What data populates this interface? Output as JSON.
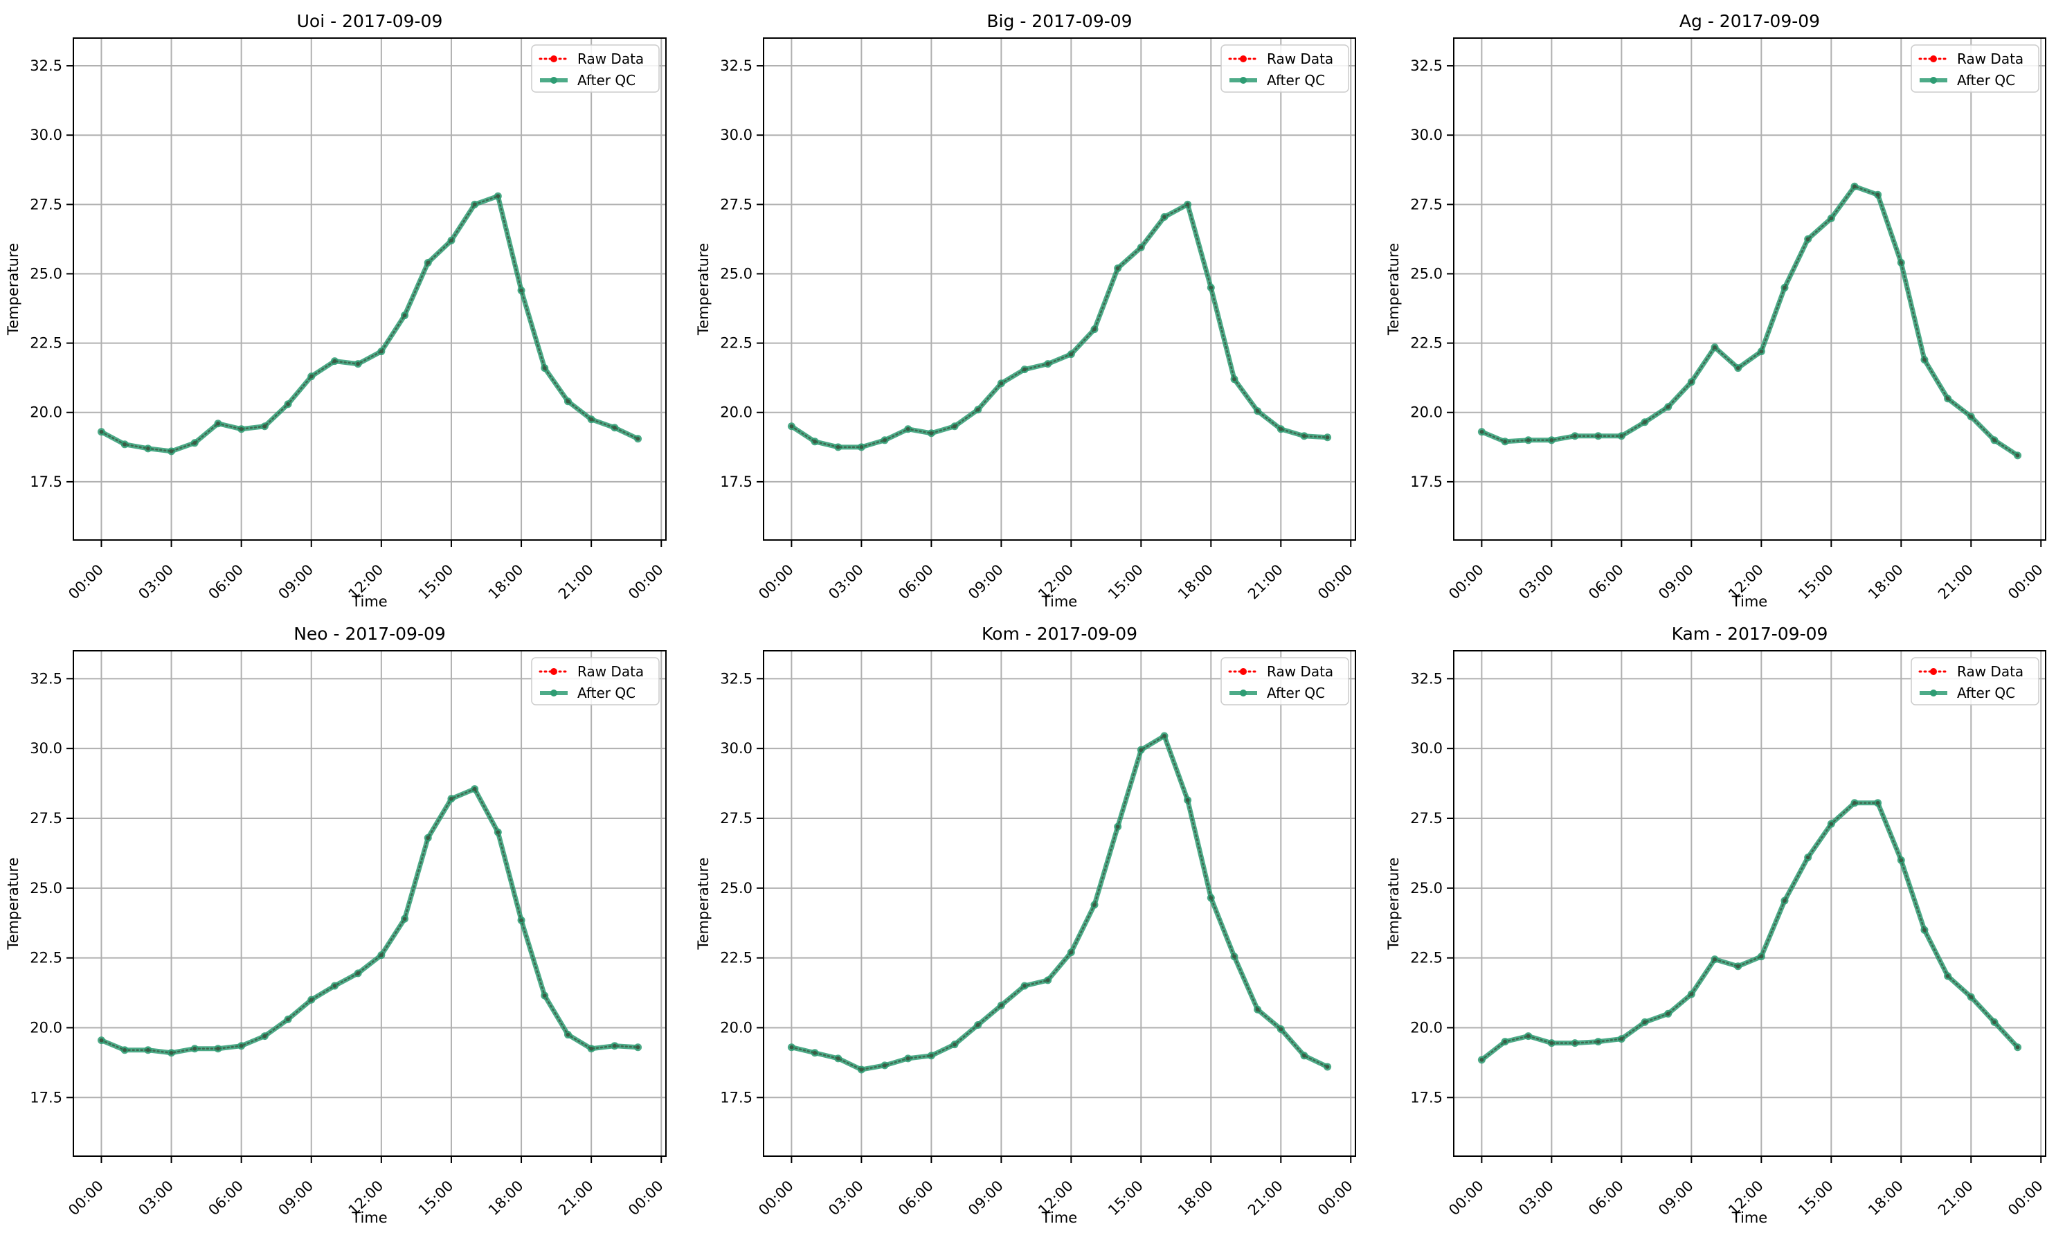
{
  "chart_data": [
    {
      "type": "line",
      "title": "Uoi - 2017-09-09",
      "xlabel": "Time",
      "ylabel": "Temperature",
      "x_ticks": [
        "00:00",
        "03:00",
        "06:00",
        "09:00",
        "12:00",
        "15:00",
        "18:00",
        "21:00",
        "00:00"
      ],
      "y_ticks": [
        "17.5",
        "20.0",
        "22.5",
        "25.0",
        "27.5",
        "30.0",
        "32.5"
      ],
      "ylim": [
        15.4,
        33.5
      ],
      "xlim_hours": [
        -1.2,
        24.2
      ],
      "grid": true,
      "legend_position": "top-right",
      "x_hours": [
        0,
        1,
        2,
        3,
        4,
        5,
        6,
        7,
        8,
        9,
        10,
        11,
        12,
        13,
        14,
        15,
        16,
        17,
        18,
        19,
        20,
        21,
        22,
        23
      ],
      "series": [
        {
          "name": "Raw Data",
          "color": "#ff0000",
          "style": "dotted",
          "values": [
            19.3,
            18.85,
            18.7,
            18.6,
            18.9,
            19.6,
            19.4,
            19.5,
            20.3,
            21.3,
            21.85,
            21.75,
            22.2,
            23.5,
            25.4,
            26.2,
            27.5,
            27.8,
            24.4,
            21.6,
            20.4,
            19.75,
            19.45,
            19.05
          ]
        },
        {
          "name": "After QC",
          "color": "#2e9c73",
          "style": "solid",
          "values": [
            19.3,
            18.85,
            18.7,
            18.6,
            18.9,
            19.6,
            19.4,
            19.5,
            20.3,
            21.3,
            21.85,
            21.75,
            22.2,
            23.5,
            25.4,
            26.2,
            27.5,
            27.8,
            24.4,
            21.6,
            20.4,
            19.75,
            19.45,
            19.05
          ]
        }
      ]
    },
    {
      "type": "line",
      "title": "Big - 2017-09-09",
      "xlabel": "Time",
      "ylabel": "Temperature",
      "x_ticks": [
        "00:00",
        "03:00",
        "06:00",
        "09:00",
        "12:00",
        "15:00",
        "18:00",
        "21:00",
        "00:00"
      ],
      "y_ticks": [
        "17.5",
        "20.0",
        "22.5",
        "25.0",
        "27.5",
        "30.0",
        "32.5"
      ],
      "ylim": [
        15.4,
        33.5
      ],
      "xlim_hours": [
        -1.2,
        24.2
      ],
      "grid": true,
      "legend_position": "top-right",
      "x_hours": [
        0,
        1,
        2,
        3,
        4,
        5,
        6,
        7,
        8,
        9,
        10,
        11,
        12,
        13,
        14,
        15,
        16,
        17,
        18,
        19,
        20,
        21,
        22,
        23
      ],
      "series": [
        {
          "name": "Raw Data",
          "color": "#ff0000",
          "style": "dotted",
          "values": [
            19.5,
            18.95,
            18.75,
            18.75,
            19.0,
            19.4,
            19.25,
            19.5,
            20.1,
            21.05,
            21.55,
            21.75,
            22.1,
            23.0,
            25.2,
            25.95,
            27.05,
            27.5,
            24.5,
            21.2,
            20.05,
            19.4,
            19.15,
            19.1
          ]
        },
        {
          "name": "After QC",
          "color": "#2e9c73",
          "style": "solid",
          "values": [
            19.5,
            18.95,
            18.75,
            18.75,
            19.0,
            19.4,
            19.25,
            19.5,
            20.1,
            21.05,
            21.55,
            21.75,
            22.1,
            23.0,
            25.2,
            25.95,
            27.05,
            27.5,
            24.5,
            21.2,
            20.05,
            19.4,
            19.15,
            19.1
          ]
        }
      ]
    },
    {
      "type": "line",
      "title": "Ag - 2017-09-09",
      "xlabel": "Time",
      "ylabel": "Temperature",
      "x_ticks": [
        "00:00",
        "03:00",
        "06:00",
        "09:00",
        "12:00",
        "15:00",
        "18:00",
        "21:00",
        "00:00"
      ],
      "y_ticks": [
        "17.5",
        "20.0",
        "22.5",
        "25.0",
        "27.5",
        "30.0",
        "32.5"
      ],
      "ylim": [
        15.4,
        33.5
      ],
      "xlim_hours": [
        -1.2,
        24.2
      ],
      "grid": true,
      "legend_position": "top-right",
      "x_hours": [
        0,
        1,
        2,
        3,
        4,
        5,
        6,
        7,
        8,
        9,
        10,
        11,
        12,
        13,
        14,
        15,
        16,
        17,
        18,
        19,
        20,
        21,
        22,
        23
      ],
      "series": [
        {
          "name": "Raw Data",
          "color": "#ff0000",
          "style": "dotted",
          "values": [
            19.3,
            18.95,
            19.0,
            19.0,
            19.15,
            19.15,
            19.15,
            19.65,
            20.2,
            21.1,
            22.35,
            21.6,
            22.2,
            24.5,
            26.25,
            27.0,
            28.15,
            27.85,
            25.4,
            21.9,
            20.5,
            19.85,
            19.0,
            18.45
          ]
        },
        {
          "name": "After QC",
          "color": "#2e9c73",
          "style": "solid",
          "values": [
            19.3,
            18.95,
            19.0,
            19.0,
            19.15,
            19.15,
            19.15,
            19.65,
            20.2,
            21.1,
            22.35,
            21.6,
            22.2,
            24.5,
            26.25,
            27.0,
            28.15,
            27.85,
            25.4,
            21.9,
            20.5,
            19.85,
            19.0,
            18.45
          ]
        }
      ]
    },
    {
      "type": "line",
      "title": "Neo - 2017-09-09",
      "xlabel": "Time",
      "ylabel": "Temperature",
      "x_ticks": [
        "00:00",
        "03:00",
        "06:00",
        "09:00",
        "12:00",
        "15:00",
        "18:00",
        "21:00",
        "00:00"
      ],
      "y_ticks": [
        "17.5",
        "20.0",
        "22.5",
        "25.0",
        "27.5",
        "30.0",
        "32.5"
      ],
      "ylim": [
        15.4,
        33.5
      ],
      "xlim_hours": [
        -1.2,
        24.2
      ],
      "grid": true,
      "legend_position": "top-right",
      "x_hours": [
        0,
        1,
        2,
        3,
        4,
        5,
        6,
        7,
        8,
        9,
        10,
        11,
        12,
        13,
        14,
        15,
        16,
        17,
        18,
        19,
        20,
        21,
        22,
        23
      ],
      "series": [
        {
          "name": "Raw Data",
          "color": "#ff0000",
          "style": "dotted",
          "values": [
            19.55,
            19.2,
            19.2,
            19.1,
            19.25,
            19.25,
            19.35,
            19.7,
            20.3,
            21.0,
            21.5,
            21.95,
            22.6,
            23.9,
            26.8,
            28.2,
            28.55,
            27.0,
            23.85,
            21.15,
            19.75,
            19.25,
            19.35,
            19.3
          ]
        },
        {
          "name": "After QC",
          "color": "#2e9c73",
          "style": "solid",
          "values": [
            19.55,
            19.2,
            19.2,
            19.1,
            19.25,
            19.25,
            19.35,
            19.7,
            20.3,
            21.0,
            21.5,
            21.95,
            22.6,
            23.9,
            26.8,
            28.2,
            28.55,
            27.0,
            23.85,
            21.15,
            19.75,
            19.25,
            19.35,
            19.3
          ]
        }
      ]
    },
    {
      "type": "line",
      "title": "Kom - 2017-09-09",
      "xlabel": "Time",
      "ylabel": "Temperature",
      "x_ticks": [
        "00:00",
        "03:00",
        "06:00",
        "09:00",
        "12:00",
        "15:00",
        "18:00",
        "21:00",
        "00:00"
      ],
      "y_ticks": [
        "17.5",
        "20.0",
        "22.5",
        "25.0",
        "27.5",
        "30.0",
        "32.5"
      ],
      "ylim": [
        15.4,
        33.5
      ],
      "xlim_hours": [
        -1.2,
        24.2
      ],
      "grid": true,
      "legend_position": "top-right",
      "x_hours": [
        0,
        1,
        2,
        3,
        4,
        5,
        6,
        7,
        8,
        9,
        10,
        11,
        12,
        13,
        14,
        15,
        16,
        17,
        18,
        19,
        20,
        21,
        22,
        23
      ],
      "series": [
        {
          "name": "Raw Data",
          "color": "#ff0000",
          "style": "dotted",
          "values": [
            19.3,
            19.1,
            18.9,
            18.5,
            18.65,
            18.9,
            19.0,
            19.4,
            20.1,
            20.8,
            21.5,
            21.7,
            22.7,
            24.4,
            27.2,
            29.95,
            30.45,
            28.15,
            24.65,
            22.55,
            20.65,
            19.95,
            19.0,
            18.6
          ]
        },
        {
          "name": "After QC",
          "color": "#2e9c73",
          "style": "solid",
          "values": [
            19.3,
            19.1,
            18.9,
            18.5,
            18.65,
            18.9,
            19.0,
            19.4,
            20.1,
            20.8,
            21.5,
            21.7,
            22.7,
            24.4,
            27.2,
            29.95,
            30.45,
            28.15,
            24.65,
            22.55,
            20.65,
            19.95,
            19.0,
            18.6
          ]
        }
      ]
    },
    {
      "type": "line",
      "title": "Kam - 2017-09-09",
      "xlabel": "Time",
      "ylabel": "Temperature",
      "x_ticks": [
        "00:00",
        "03:00",
        "06:00",
        "09:00",
        "12:00",
        "15:00",
        "18:00",
        "21:00",
        "00:00"
      ],
      "y_ticks": [
        "17.5",
        "20.0",
        "22.5",
        "25.0",
        "27.5",
        "30.0",
        "32.5"
      ],
      "ylim": [
        15.4,
        33.5
      ],
      "xlim_hours": [
        -1.2,
        24.2
      ],
      "grid": true,
      "legend_position": "top-right",
      "x_hours": [
        0,
        1,
        2,
        3,
        4,
        5,
        6,
        7,
        8,
        9,
        10,
        11,
        12,
        13,
        14,
        15,
        16,
        17,
        18,
        19,
        20,
        21,
        22,
        23
      ],
      "series": [
        {
          "name": "Raw Data",
          "color": "#ff0000",
          "style": "dotted",
          "values": [
            18.85,
            19.5,
            19.7,
            19.45,
            19.45,
            19.5,
            19.6,
            20.2,
            20.5,
            21.2,
            22.45,
            22.2,
            22.55,
            24.55,
            26.1,
            27.3,
            28.05,
            28.05,
            26.0,
            23.5,
            21.85,
            21.1,
            20.2,
            19.3
          ]
        },
        {
          "name": "After QC",
          "color": "#2e9c73",
          "style": "solid",
          "values": [
            18.85,
            19.5,
            19.7,
            19.45,
            19.45,
            19.5,
            19.6,
            20.2,
            20.5,
            21.2,
            22.45,
            22.2,
            22.55,
            24.55,
            26.1,
            27.3,
            28.05,
            28.05,
            26.0,
            23.5,
            21.85,
            21.1,
            20.2,
            19.3
          ]
        }
      ]
    }
  ]
}
